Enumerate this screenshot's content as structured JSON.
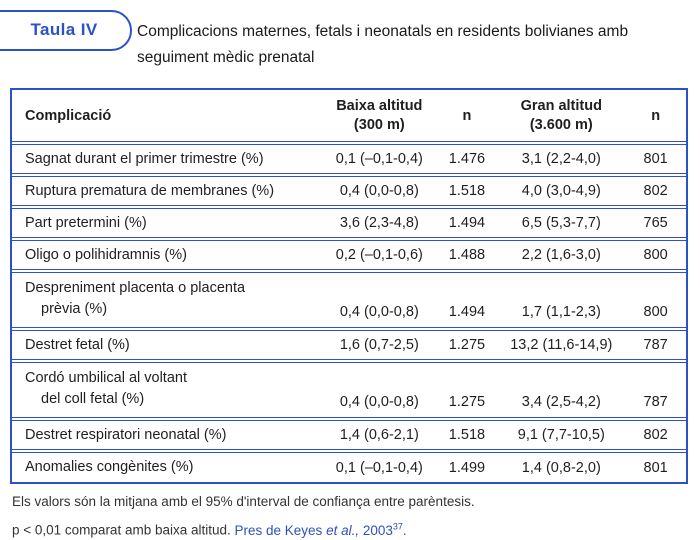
{
  "accent_color": "#2b52c8",
  "header": {
    "tab_label": "Taula IV",
    "title_line1": "Complicacions maternes, fetals i neonatals en residents bolivianes amb",
    "title_line2": "seguiment mèdic prenatal"
  },
  "table": {
    "columns": {
      "complication": "Complicació",
      "baixa_line1": "Baixa altitud",
      "baixa_line2": "(300 m)",
      "n_baixa": "n",
      "gran_line1": "Gran altitud",
      "gran_line2": "(3.600 m)",
      "n_gran": "n"
    },
    "rows": [
      {
        "name": "Sagnat durant el primer trimestre (%)",
        "baixa": "0,1 (–0,1-0,4)",
        "n_baixa": "1.476",
        "gran": "3,1 (2,2-4,0)",
        "n_gran": "801"
      },
      {
        "name": "Ruptura prematura de membranes (%)",
        "baixa": "0,4 (0,0-0,8)",
        "n_baixa": "1.518",
        "gran": "4,0 (3,0-4,9)",
        "n_gran": "802"
      },
      {
        "name": "Part pretermini (%)",
        "baixa": "3,6 (2,3-4,8)",
        "n_baixa": "1.494",
        "gran": "6,5 (5,3-7,7)",
        "n_gran": "765"
      },
      {
        "name": "Oligo o polihidramnis (%)",
        "baixa": "0,2 (–0,1-0,6)",
        "n_baixa": "1.488",
        "gran": "2,2 (1,6-3,0)",
        "n_gran": "800"
      },
      {
        "name": "Despreniment placenta o placenta",
        "name2": "prèvia (%)",
        "baixa": "0,4 (0,0-0,8)",
        "n_baixa": "1.494",
        "gran": "1,7 (1,1-2,3)",
        "n_gran": "800"
      },
      {
        "name": "Destret fetal (%)",
        "baixa": "1,6 (0,7-2,5)",
        "n_baixa": "1.275",
        "gran": "13,2 (11,6-14,9)",
        "n_gran": "787"
      },
      {
        "name": "Cordó umbilical al voltant",
        "name2": "del coll fetal (%)",
        "baixa": "0,4 (0,0-0,8)",
        "n_baixa": "1.275",
        "gran": "3,4 (2,5-4,2)",
        "n_gran": "787"
      },
      {
        "name": "Destret respiratori neonatal (%)",
        "baixa": "1,4 (0,6-2,1)",
        "n_baixa": "1.518",
        "gran": "9,1 (7,7-10,5)",
        "n_gran": "802"
      },
      {
        "name": "Anomalies congènites (%)",
        "baixa": "0,1 (–0,1-0,4)",
        "n_baixa": "1.499",
        "gran": "1,4 (0,8-2,0)",
        "n_gran": "801"
      }
    ]
  },
  "footer": {
    "line1": "Els valors són la mitjana amb el 95% d'interval de confiança entre parèntesis.",
    "line2_text": "p < 0,01 comparat amb baixa altitud. ",
    "citation_pre": "Pres de Keyes ",
    "citation_italic": "et al.,",
    "citation_mid": " 2003",
    "citation_sup": "37",
    "citation_end": "."
  }
}
